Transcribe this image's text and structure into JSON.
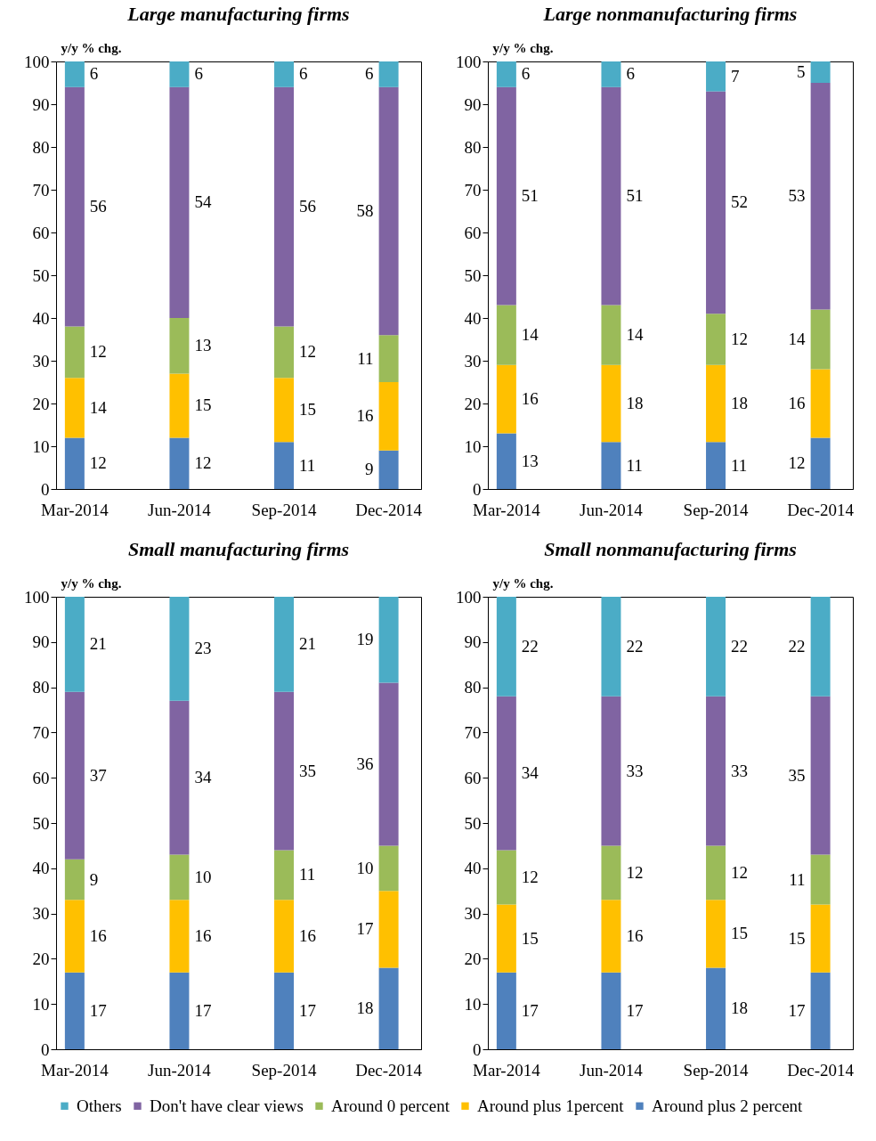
{
  "chart_data": [
    {
      "type": "bar",
      "title": "Large manufacturing firms",
      "ylabel": "y/y % chg.",
      "categories": [
        "Mar-2014",
        "Jun-2014",
        "Sep-2014",
        "Dec-2014"
      ],
      "stacked": true,
      "data_labels": true,
      "legend": "bottom",
      "ylim": [
        0,
        100
      ],
      "yticks": [
        0,
        10,
        20,
        30,
        40,
        50,
        60,
        70,
        80,
        90,
        100
      ],
      "series": [
        {
          "name": "Around plus 2 percent",
          "color": "#4f81bd",
          "values": [
            12,
            12,
            11,
            9
          ]
        },
        {
          "name": "Around plus 1percent",
          "color": "#ffc000",
          "values": [
            14,
            15,
            15,
            16
          ]
        },
        {
          "name": "Around 0 percent",
          "color": "#9bbb59",
          "values": [
            12,
            13,
            12,
            11
          ]
        },
        {
          "name": "Don't have clear views",
          "color": "#8064a2",
          "values": [
            56,
            54,
            56,
            58
          ]
        },
        {
          "name": "Others",
          "color": "#4bacc6",
          "values": [
            6,
            6,
            6,
            6
          ]
        }
      ]
    },
    {
      "type": "bar",
      "title": "Large nonmanufacturing firms",
      "ylabel": "y/y % chg.",
      "categories": [
        "Mar-2014",
        "Jun-2014",
        "Sep-2014",
        "Dec-2014"
      ],
      "stacked": true,
      "data_labels": true,
      "legend": "bottom",
      "ylim": [
        0,
        100
      ],
      "yticks": [
        0,
        10,
        20,
        30,
        40,
        50,
        60,
        70,
        80,
        90,
        100
      ],
      "series": [
        {
          "name": "Around plus 2 percent",
          "color": "#4f81bd",
          "values": [
            13,
            11,
            11,
            12
          ]
        },
        {
          "name": "Around plus 1percent",
          "color": "#ffc000",
          "values": [
            16,
            18,
            18,
            16
          ]
        },
        {
          "name": "Around 0 percent",
          "color": "#9bbb59",
          "values": [
            14,
            14,
            12,
            14
          ]
        },
        {
          "name": "Don't have clear views",
          "color": "#8064a2",
          "values": [
            51,
            51,
            52,
            53
          ]
        },
        {
          "name": "Others",
          "color": "#4bacc6",
          "values": [
            6,
            6,
            7,
            5
          ]
        }
      ]
    },
    {
      "type": "bar",
      "title": "Small manufacturing firms",
      "ylabel": "y/y % chg.",
      "categories": [
        "Mar-2014",
        "Jun-2014",
        "Sep-2014",
        "Dec-2014"
      ],
      "stacked": true,
      "data_labels": true,
      "legend": "bottom",
      "ylim": [
        0,
        100
      ],
      "yticks": [
        0,
        10,
        20,
        30,
        40,
        50,
        60,
        70,
        80,
        90,
        100
      ],
      "series": [
        {
          "name": "Around plus 2 percent",
          "color": "#4f81bd",
          "values": [
            17,
            17,
            17,
            18
          ]
        },
        {
          "name": "Around plus 1percent",
          "color": "#ffc000",
          "values": [
            16,
            16,
            16,
            17
          ]
        },
        {
          "name": "Around 0 percent",
          "color": "#9bbb59",
          "values": [
            9,
            10,
            11,
            10
          ]
        },
        {
          "name": "Don't have clear views",
          "color": "#8064a2",
          "values": [
            37,
            34,
            35,
            36
          ]
        },
        {
          "name": "Others",
          "color": "#4bacc6",
          "values": [
            21,
            23,
            21,
            19
          ]
        }
      ]
    },
    {
      "type": "bar",
      "title": "Small nonmanufacturing firms",
      "ylabel": "y/y % chg.",
      "categories": [
        "Mar-2014",
        "Jun-2014",
        "Sep-2014",
        "Dec-2014"
      ],
      "stacked": true,
      "data_labels": true,
      "legend": "bottom",
      "ylim": [
        0,
        100
      ],
      "yticks": [
        0,
        10,
        20,
        30,
        40,
        50,
        60,
        70,
        80,
        90,
        100
      ],
      "series": [
        {
          "name": "Around plus 2 percent",
          "color": "#4f81bd",
          "values": [
            17,
            17,
            18,
            17
          ]
        },
        {
          "name": "Around plus 1percent",
          "color": "#ffc000",
          "values": [
            15,
            16,
            15,
            15
          ]
        },
        {
          "name": "Around 0 percent",
          "color": "#9bbb59",
          "values": [
            12,
            12,
            12,
            11
          ]
        },
        {
          "name": "Don't have clear views",
          "color": "#8064a2",
          "values": [
            34,
            33,
            33,
            35
          ]
        },
        {
          "name": "Others",
          "color": "#4bacc6",
          "values": [
            22,
            22,
            22,
            22
          ]
        }
      ]
    }
  ]
}
